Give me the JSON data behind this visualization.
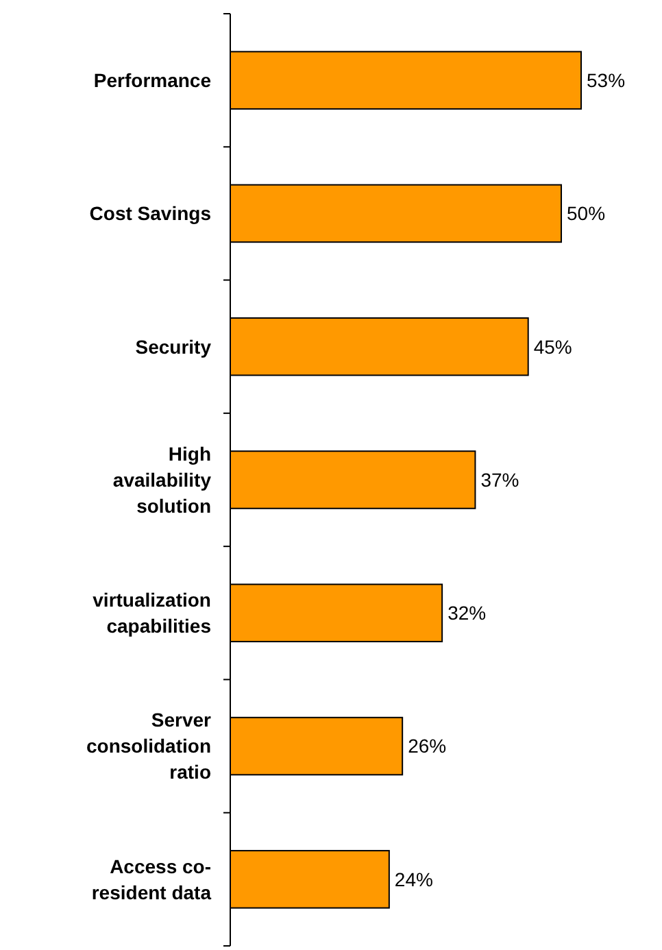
{
  "chart_data": {
    "type": "bar",
    "orientation": "horizontal",
    "categories": [
      "Performance",
      "Cost Savings",
      "Security",
      "High availability solution",
      "virtualization capabilities",
      "Server consolidation ratio",
      "Access co-resident data"
    ],
    "values": [
      53,
      50,
      45,
      37,
      32,
      26,
      24
    ],
    "value_labels": [
      "53%",
      "50%",
      "45%",
      "37%",
      "32%",
      "26%",
      "24%"
    ],
    "color": "#ff9900"
  }
}
